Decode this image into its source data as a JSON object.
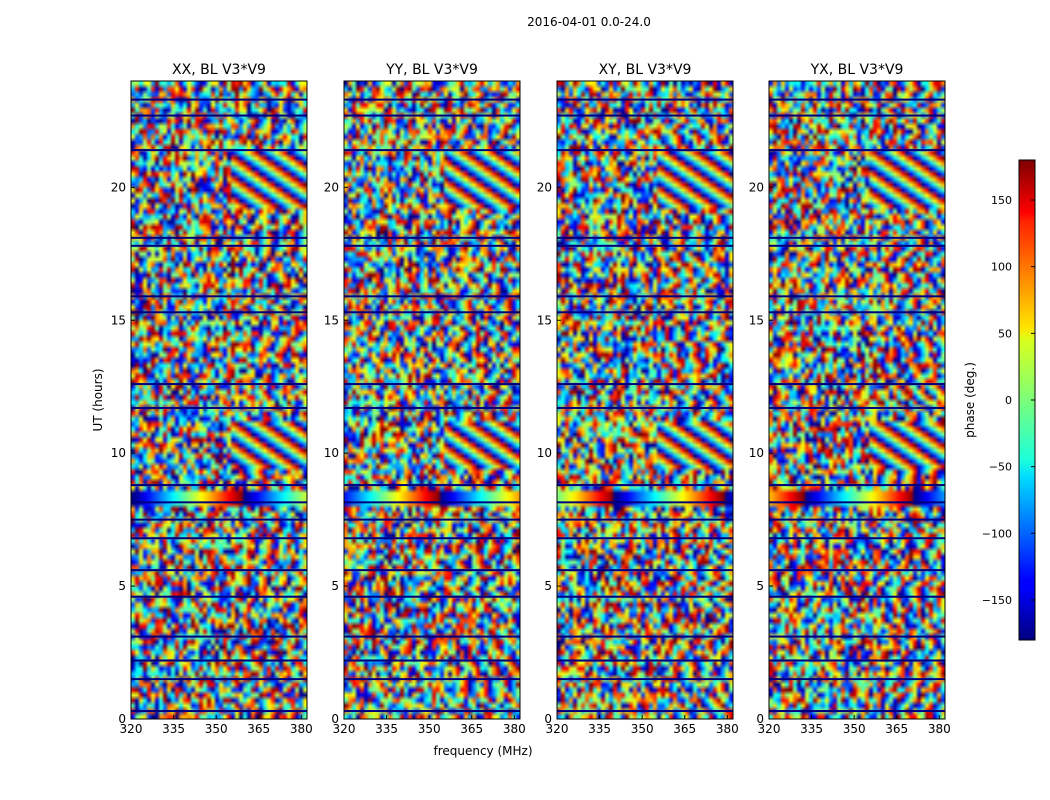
{
  "figure": {
    "suptitle": "2016-04-01 0.0-24.0"
  },
  "chart_data": {
    "type": "heatmap",
    "xlabel": "frequency (MHz)",
    "ylabel": "UT (hours)",
    "xlim": [
      320,
      382
    ],
    "ylim": [
      0,
      24
    ],
    "xticks": [
      320,
      335,
      350,
      365,
      380
    ],
    "yticks": [
      0,
      5,
      10,
      15,
      20
    ],
    "colormap": "jet",
    "panels": [
      {
        "title": "XX, BL V3*V9",
        "polarization": "XX"
      },
      {
        "title": "YY, BL V3*V9",
        "polarization": "YY"
      },
      {
        "title": "XY, BL V3*V9",
        "polarization": "XY"
      },
      {
        "title": "YX, BL V3*V9",
        "polarization": "YX"
      }
    ],
    "colorbar": {
      "label": "phase (deg.)",
      "range": [
        -180,
        180
      ],
      "ticks": [
        -150,
        -100,
        -50,
        0,
        50,
        100,
        150
      ],
      "tick_labels": [
        "−150",
        "−100",
        "−50",
        "0",
        "50",
        "100",
        "150"
      ]
    },
    "features": {
      "flagged_lines_ut": [
        0.3,
        1.5,
        2.2,
        3.1,
        4.6,
        5.6,
        6.8,
        7.5,
        8.15,
        8.8,
        11.7,
        12.6,
        15.3,
        15.9,
        17.8,
        18.1,
        21.4,
        22.7,
        23.3
      ],
      "strong_band_ut": [
        8.1,
        8.6
      ],
      "coherent_region_ut": [
        [
          9.5,
          11.2
        ],
        [
          19.3,
          21.4
        ]
      ]
    }
  }
}
